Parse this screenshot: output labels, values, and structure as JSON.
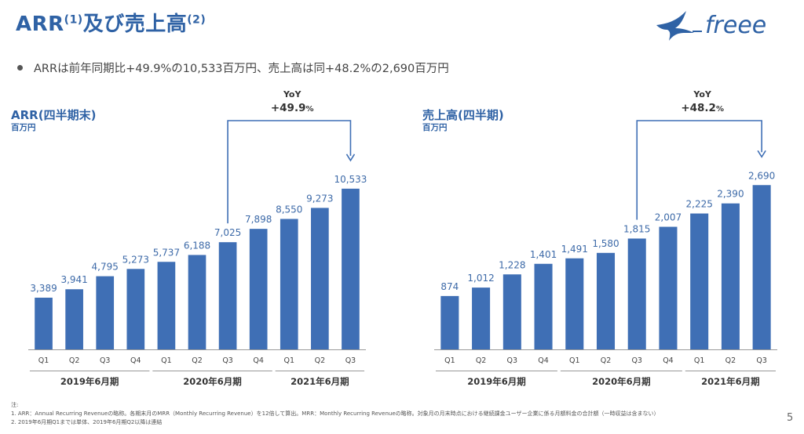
{
  "title": {
    "main": "ARR",
    "sup1": "(1)",
    "rest": "及び売上高",
    "sup2": "(2)"
  },
  "bullet": "ARRは前年同期比+49.9%の10,533百万円、売上高は同+48.2%の2,690百万円",
  "logo": {
    "text": "freee"
  },
  "chart_data": [
    {
      "type": "bar",
      "title": "ARR(四半期末)",
      "unit": "百万円",
      "categories": [
        "Q1",
        "Q2",
        "Q3",
        "Q4",
        "Q1",
        "Q2",
        "Q3",
        "Q4",
        "Q1",
        "Q2",
        "Q3"
      ],
      "values": [
        3389,
        3941,
        4795,
        5273,
        5737,
        6188,
        7025,
        7898,
        8550,
        9273,
        10533
      ],
      "value_labels": [
        "3,389",
        "3,941",
        "4,795",
        "5,273",
        "5,737",
        "6,188",
        "7,025",
        "7,898",
        "8,550",
        "9,273",
        "10,533"
      ],
      "groups": [
        "2019年6月期",
        "2020年6月期",
        "2021年6月期"
      ],
      "yoy": {
        "label": "YoY",
        "value": "+49.9",
        "pct": "%",
        "from_index": 6,
        "to_index": 10
      },
      "ylim": [
        0,
        11500
      ],
      "color": "#3f6fb5"
    },
    {
      "type": "bar",
      "title": "売上高(四半期)",
      "unit": "百万円",
      "categories": [
        "Q1",
        "Q2",
        "Q3",
        "Q4",
        "Q1",
        "Q2",
        "Q3",
        "Q4",
        "Q1",
        "Q2",
        "Q3"
      ],
      "values": [
        874,
        1012,
        1228,
        1401,
        1491,
        1580,
        1815,
        2007,
        2225,
        2390,
        2690
      ],
      "value_labels": [
        "874",
        "1,012",
        "1,228",
        "1,401",
        "1,491",
        "1,580",
        "1,815",
        "2,007",
        "2,225",
        "2,390",
        "2,690"
      ],
      "groups": [
        "2019年6月期",
        "2020年6月期",
        "2021年6月期"
      ],
      "yoy": {
        "label": "YoY",
        "value": "+48.2",
        "pct": "%",
        "from_index": 6,
        "to_index": 10
      },
      "ylim": [
        0,
        2950
      ],
      "color": "#3f6fb5"
    }
  ],
  "notes": {
    "heading": "注:",
    "line1": "1.  ARR：Annual Recurring Revenueの略称。各期末月のMRR（Monthly Recurring Revenue）を12倍して算出。MRR：Monthly Recurring Revenueの略称。対象月の月末時点における継続課金ユーザー企業に係る月額料金の合計額（一時収益は含まない）",
    "line2": "2.  2019年6月期Q1までは単体、2019年6月期Q2以降は連結"
  },
  "page_number": "5"
}
